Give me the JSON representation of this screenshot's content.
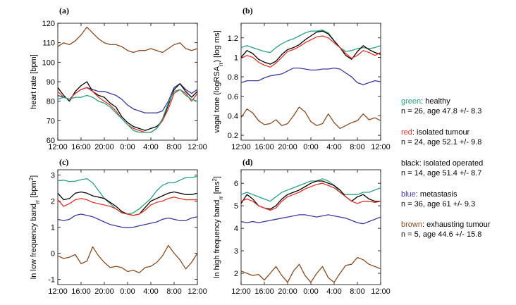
{
  "colors": {
    "healthy": "#2aa07a",
    "isolated_tumour": "#e0332b",
    "isolated_operated": "#000000",
    "metastasis": "#3a3a9c",
    "exhausting_tumour": "#8a4a22"
  },
  "legend": [
    {
      "key": "healthy",
      "name": "green",
      "label": ": healthy",
      "stats": "n = 26, age 47.8 +/- 8.3"
    },
    {
      "key": "isolated_tumour",
      "name": "red",
      "label": ": isolated tumour",
      "stats": "n = 24, age 52.1 +/- 9.8"
    },
    {
      "key": "isolated_operated",
      "name": "black",
      "label": ": isolated operated",
      "stats": "n = 14, age 51.4 +/- 8.7"
    },
    {
      "key": "metastasis",
      "name": "blue",
      "label": ": metastasis",
      "stats": "n = 36, age 61 +/- 9.3"
    },
    {
      "key": "exhausting_tumour",
      "name": "brown",
      "label": ": exhausting tumour",
      "stats": "n = 5, age 44.6 +/- 15.8"
    }
  ],
  "chart_data": [
    {
      "panel": "(a)",
      "type": "line",
      "ylabel": "heart rate [bpm]",
      "ylim": [
        60,
        120
      ],
      "yticks": [
        60,
        70,
        80,
        90,
        100,
        110,
        120
      ],
      "xlim": [
        0,
        24
      ],
      "xticks": [
        0,
        4,
        8,
        12,
        16,
        20,
        24
      ],
      "xtick_labels": [
        "12:00",
        "16:00",
        "20:00",
        "0:00",
        "4:00",
        "8:00",
        "12:00"
      ],
      "x": [
        0,
        1,
        2,
        3,
        4,
        5,
        6,
        7,
        8,
        9,
        10,
        11,
        12,
        13,
        14,
        15,
        16,
        17,
        18,
        19,
        20,
        21,
        22,
        23,
        24
      ],
      "series": [
        {
          "key": "exhausting_tumour",
          "values": [
            108,
            110,
            109,
            111,
            114,
            118,
            115,
            112,
            110,
            109,
            109,
            108,
            106,
            105,
            106,
            106,
            107,
            106,
            105,
            107,
            109,
            110,
            107,
            106,
            107
          ]
        },
        {
          "key": "metastasis",
          "values": [
            83,
            82,
            81,
            84,
            86,
            87,
            86,
            85,
            85,
            84,
            83,
            81,
            78,
            76,
            75,
            74,
            74,
            74,
            75,
            80,
            87,
            89,
            86,
            84,
            86
          ]
        },
        {
          "key": "isolated_operated",
          "values": [
            87,
            83,
            80,
            85,
            88,
            90,
            85,
            83,
            82,
            79,
            77,
            72,
            69,
            67,
            66,
            65,
            66,
            67,
            70,
            78,
            86,
            89,
            85,
            82,
            85
          ]
        },
        {
          "key": "isolated_tumour",
          "values": [
            85,
            82,
            81,
            84,
            86,
            87,
            85,
            82,
            80,
            78,
            75,
            71,
            68,
            66,
            65,
            64,
            64,
            66,
            70,
            76,
            84,
            86,
            84,
            80,
            84
          ]
        },
        {
          "key": "healthy",
          "values": [
            81,
            82,
            81,
            82,
            82,
            83,
            82,
            80,
            79,
            77,
            74,
            71,
            68,
            65,
            64,
            64,
            64,
            66,
            71,
            79,
            85,
            86,
            83,
            81,
            80
          ]
        }
      ]
    },
    {
      "panel": "(b)",
      "type": "line",
      "ylabel": "vagal tone (logRSA_rr) [log ms]",
      "ylim": [
        0.15,
        1.35
      ],
      "yticks": [
        0.2,
        0.4,
        0.6,
        0.8,
        1,
        1.2
      ],
      "ytick_labels": [
        "0.2",
        "0.4",
        "0.6",
        "0.8",
        "1",
        "1.2"
      ],
      "xlim": [
        0,
        24
      ],
      "xticks": [
        0,
        4,
        8,
        12,
        16,
        20,
        24
      ],
      "xtick_labels": [
        "12:00",
        "16:00",
        "20:00",
        "0:00",
        "4:00",
        "8:00",
        "12:00"
      ],
      "x": [
        0,
        1,
        2,
        3,
        4,
        5,
        6,
        7,
        8,
        9,
        10,
        11,
        12,
        13,
        14,
        15,
        16,
        17,
        18,
        19,
        20,
        21,
        22,
        23,
        24
      ],
      "series": [
        {
          "key": "healthy",
          "values": [
            1.1,
            1.12,
            1.1,
            1.08,
            1.06,
            1.05,
            1.1,
            1.14,
            1.17,
            1.19,
            1.22,
            1.25,
            1.27,
            1.27,
            1.28,
            1.25,
            1.17,
            1.1,
            1.06,
            1.07,
            1.09,
            1.1,
            1.09,
            1.1,
            1.12
          ]
        },
        {
          "key": "isolated_operated",
          "values": [
            1.0,
            1.07,
            1.04,
            0.98,
            0.95,
            0.93,
            0.96,
            1.03,
            1.08,
            1.1,
            1.13,
            1.18,
            1.22,
            1.26,
            1.27,
            1.24,
            1.17,
            1.1,
            1.02,
            0.98,
            1.06,
            1.12,
            1.08,
            1.05,
            1.03
          ]
        },
        {
          "key": "isolated_tumour",
          "values": [
            0.99,
            1.02,
            1.0,
            0.95,
            0.92,
            0.9,
            0.94,
            1.0,
            1.06,
            1.08,
            1.11,
            1.15,
            1.18,
            1.21,
            1.22,
            1.2,
            1.15,
            1.1,
            1.04,
            0.99,
            1.02,
            1.07,
            1.05,
            1.02,
            1.05
          ]
        },
        {
          "key": "metastasis",
          "values": [
            0.74,
            0.76,
            0.76,
            0.76,
            0.79,
            0.81,
            0.82,
            0.83,
            0.86,
            0.89,
            0.89,
            0.88,
            0.87,
            0.87,
            0.88,
            0.88,
            0.89,
            0.88,
            0.84,
            0.8,
            0.74,
            0.72,
            0.74,
            0.76,
            0.75
          ]
        },
        {
          "key": "exhausting_tumour",
          "values": [
            0.38,
            0.47,
            0.43,
            0.35,
            0.31,
            0.32,
            0.36,
            0.3,
            0.32,
            0.4,
            0.49,
            0.44,
            0.34,
            0.3,
            0.32,
            0.42,
            0.33,
            0.27,
            0.3,
            0.33,
            0.35,
            0.42,
            0.36,
            0.38,
            0.35
          ]
        }
      ]
    },
    {
      "panel": "(c)",
      "type": "line",
      "ylabel": "ln low frequency band_rr [bpm^2]",
      "ylim": [
        -1.2,
        3.2
      ],
      "yticks": [
        -1,
        0,
        1,
        2,
        3
      ],
      "xlim": [
        0,
        24
      ],
      "xticks": [
        0,
        4,
        8,
        12,
        16,
        20,
        24
      ],
      "xtick_labels": [
        "12:00",
        "16:00",
        "20:00",
        "0:00",
        "4:00",
        "8:00",
        "12:00"
      ],
      "x": [
        0,
        1,
        2,
        3,
        4,
        5,
        6,
        7,
        8,
        9,
        10,
        11,
        12,
        13,
        14,
        15,
        16,
        17,
        18,
        19,
        20,
        21,
        22,
        23,
        24
      ],
      "series": [
        {
          "key": "healthy",
          "values": [
            2.78,
            2.8,
            2.75,
            2.76,
            2.82,
            2.86,
            2.7,
            2.4,
            2.1,
            1.9,
            1.7,
            1.55,
            1.5,
            1.55,
            1.7,
            1.9,
            2.1,
            2.4,
            2.6,
            2.7,
            2.7,
            2.8,
            2.9,
            2.9,
            2.95
          ]
        },
        {
          "key": "isolated_operated",
          "values": [
            2.3,
            2.05,
            2.1,
            2.3,
            2.35,
            2.3,
            2.2,
            2.15,
            2.1,
            1.95,
            1.8,
            1.6,
            1.5,
            1.45,
            1.5,
            1.75,
            2.0,
            2.1,
            2.2,
            2.3,
            2.35,
            2.3,
            2.25,
            2.25,
            2.3
          ]
        },
        {
          "key": "isolated_tumour",
          "values": [
            2.05,
            1.8,
            1.9,
            2.05,
            2.1,
            2.05,
            1.95,
            1.9,
            1.85,
            1.8,
            1.7,
            1.55,
            1.5,
            1.45,
            1.5,
            1.65,
            1.85,
            1.95,
            2.0,
            2.1,
            2.15,
            2.1,
            2.05,
            2.05,
            2.05
          ]
        },
        {
          "key": "metastasis",
          "values": [
            1.3,
            1.25,
            1.3,
            1.45,
            1.5,
            1.45,
            1.4,
            1.3,
            1.2,
            1.1,
            1.05,
            1.0,
            0.98,
            1.0,
            1.05,
            1.1,
            1.15,
            1.2,
            1.3,
            1.35,
            1.3,
            1.25,
            1.25,
            1.35,
            1.4
          ]
        },
        {
          "key": "exhausting_tumour",
          "values": [
            -0.1,
            -0.2,
            -0.15,
            -0.05,
            -0.4,
            -0.3,
            0.25,
            -0.1,
            -0.35,
            -0.55,
            -0.5,
            -0.55,
            -0.7,
            -0.65,
            -0.75,
            -0.55,
            -0.5,
            -0.35,
            -0.1,
            0.3,
            0.0,
            -0.25,
            -0.6,
            -0.35,
            0.0
          ]
        }
      ]
    },
    {
      "panel": "(d)",
      "type": "line",
      "ylabel": "ln high frequency band_rr [ms^2]",
      "ylim": [
        1.5,
        6.6
      ],
      "yticks": [
        2,
        3,
        4,
        5,
        6
      ],
      "xlim": [
        0,
        24
      ],
      "xticks": [
        0,
        4,
        8,
        12,
        16,
        20,
        24
      ],
      "xtick_labels": [
        "12:00",
        "16:00",
        "20:00",
        "0:00",
        "4:00",
        "8:00",
        "12:00"
      ],
      "x": [
        0,
        1,
        2,
        3,
        4,
        5,
        6,
        7,
        8,
        9,
        10,
        11,
        12,
        13,
        14,
        15,
        16,
        17,
        18,
        19,
        20,
        21,
        22,
        23,
        24
      ],
      "series": [
        {
          "key": "healthy",
          "values": [
            5.5,
            5.6,
            5.5,
            5.4,
            5.3,
            5.2,
            5.4,
            5.6,
            5.7,
            5.8,
            5.9,
            6.0,
            6.1,
            6.1,
            6.2,
            6.1,
            5.9,
            5.6,
            5.5,
            5.5,
            5.5,
            5.6,
            5.6,
            5.7,
            5.8
          ]
        },
        {
          "key": "isolated_operated",
          "values": [
            5.1,
            5.5,
            5.3,
            5.0,
            4.9,
            4.85,
            5.0,
            5.3,
            5.5,
            5.6,
            5.7,
            5.85,
            6.0,
            6.1,
            6.1,
            6.0,
            5.9,
            5.7,
            5.4,
            5.2,
            5.4,
            5.5,
            5.3,
            5.2,
            5.2
          ]
        },
        {
          "key": "isolated_tumour",
          "values": [
            5.2,
            5.3,
            5.2,
            5.0,
            4.9,
            4.8,
            4.9,
            5.2,
            5.4,
            5.5,
            5.6,
            5.75,
            5.85,
            5.95,
            6.0,
            5.9,
            5.8,
            5.6,
            5.4,
            5.2,
            5.1,
            5.2,
            5.2,
            5.15,
            5.2
          ]
        },
        {
          "key": "metastasis",
          "values": [
            4.3,
            4.25,
            4.3,
            4.25,
            4.3,
            4.35,
            4.4,
            4.45,
            4.5,
            4.55,
            4.6,
            4.6,
            4.55,
            4.5,
            4.55,
            4.6,
            4.55,
            4.5,
            4.45,
            4.35,
            4.25,
            4.2,
            4.3,
            4.4,
            4.5
          ]
        },
        {
          "key": "exhausting_tumour",
          "values": [
            2.1,
            2.0,
            1.9,
            1.95,
            1.7,
            2.0,
            2.3,
            1.9,
            1.6,
            2.1,
            2.4,
            1.9,
            1.6,
            2.0,
            2.3,
            1.8,
            1.6,
            2.0,
            2.35,
            2.4,
            2.7,
            2.6,
            2.4,
            2.3,
            2.2
          ]
        }
      ]
    }
  ]
}
